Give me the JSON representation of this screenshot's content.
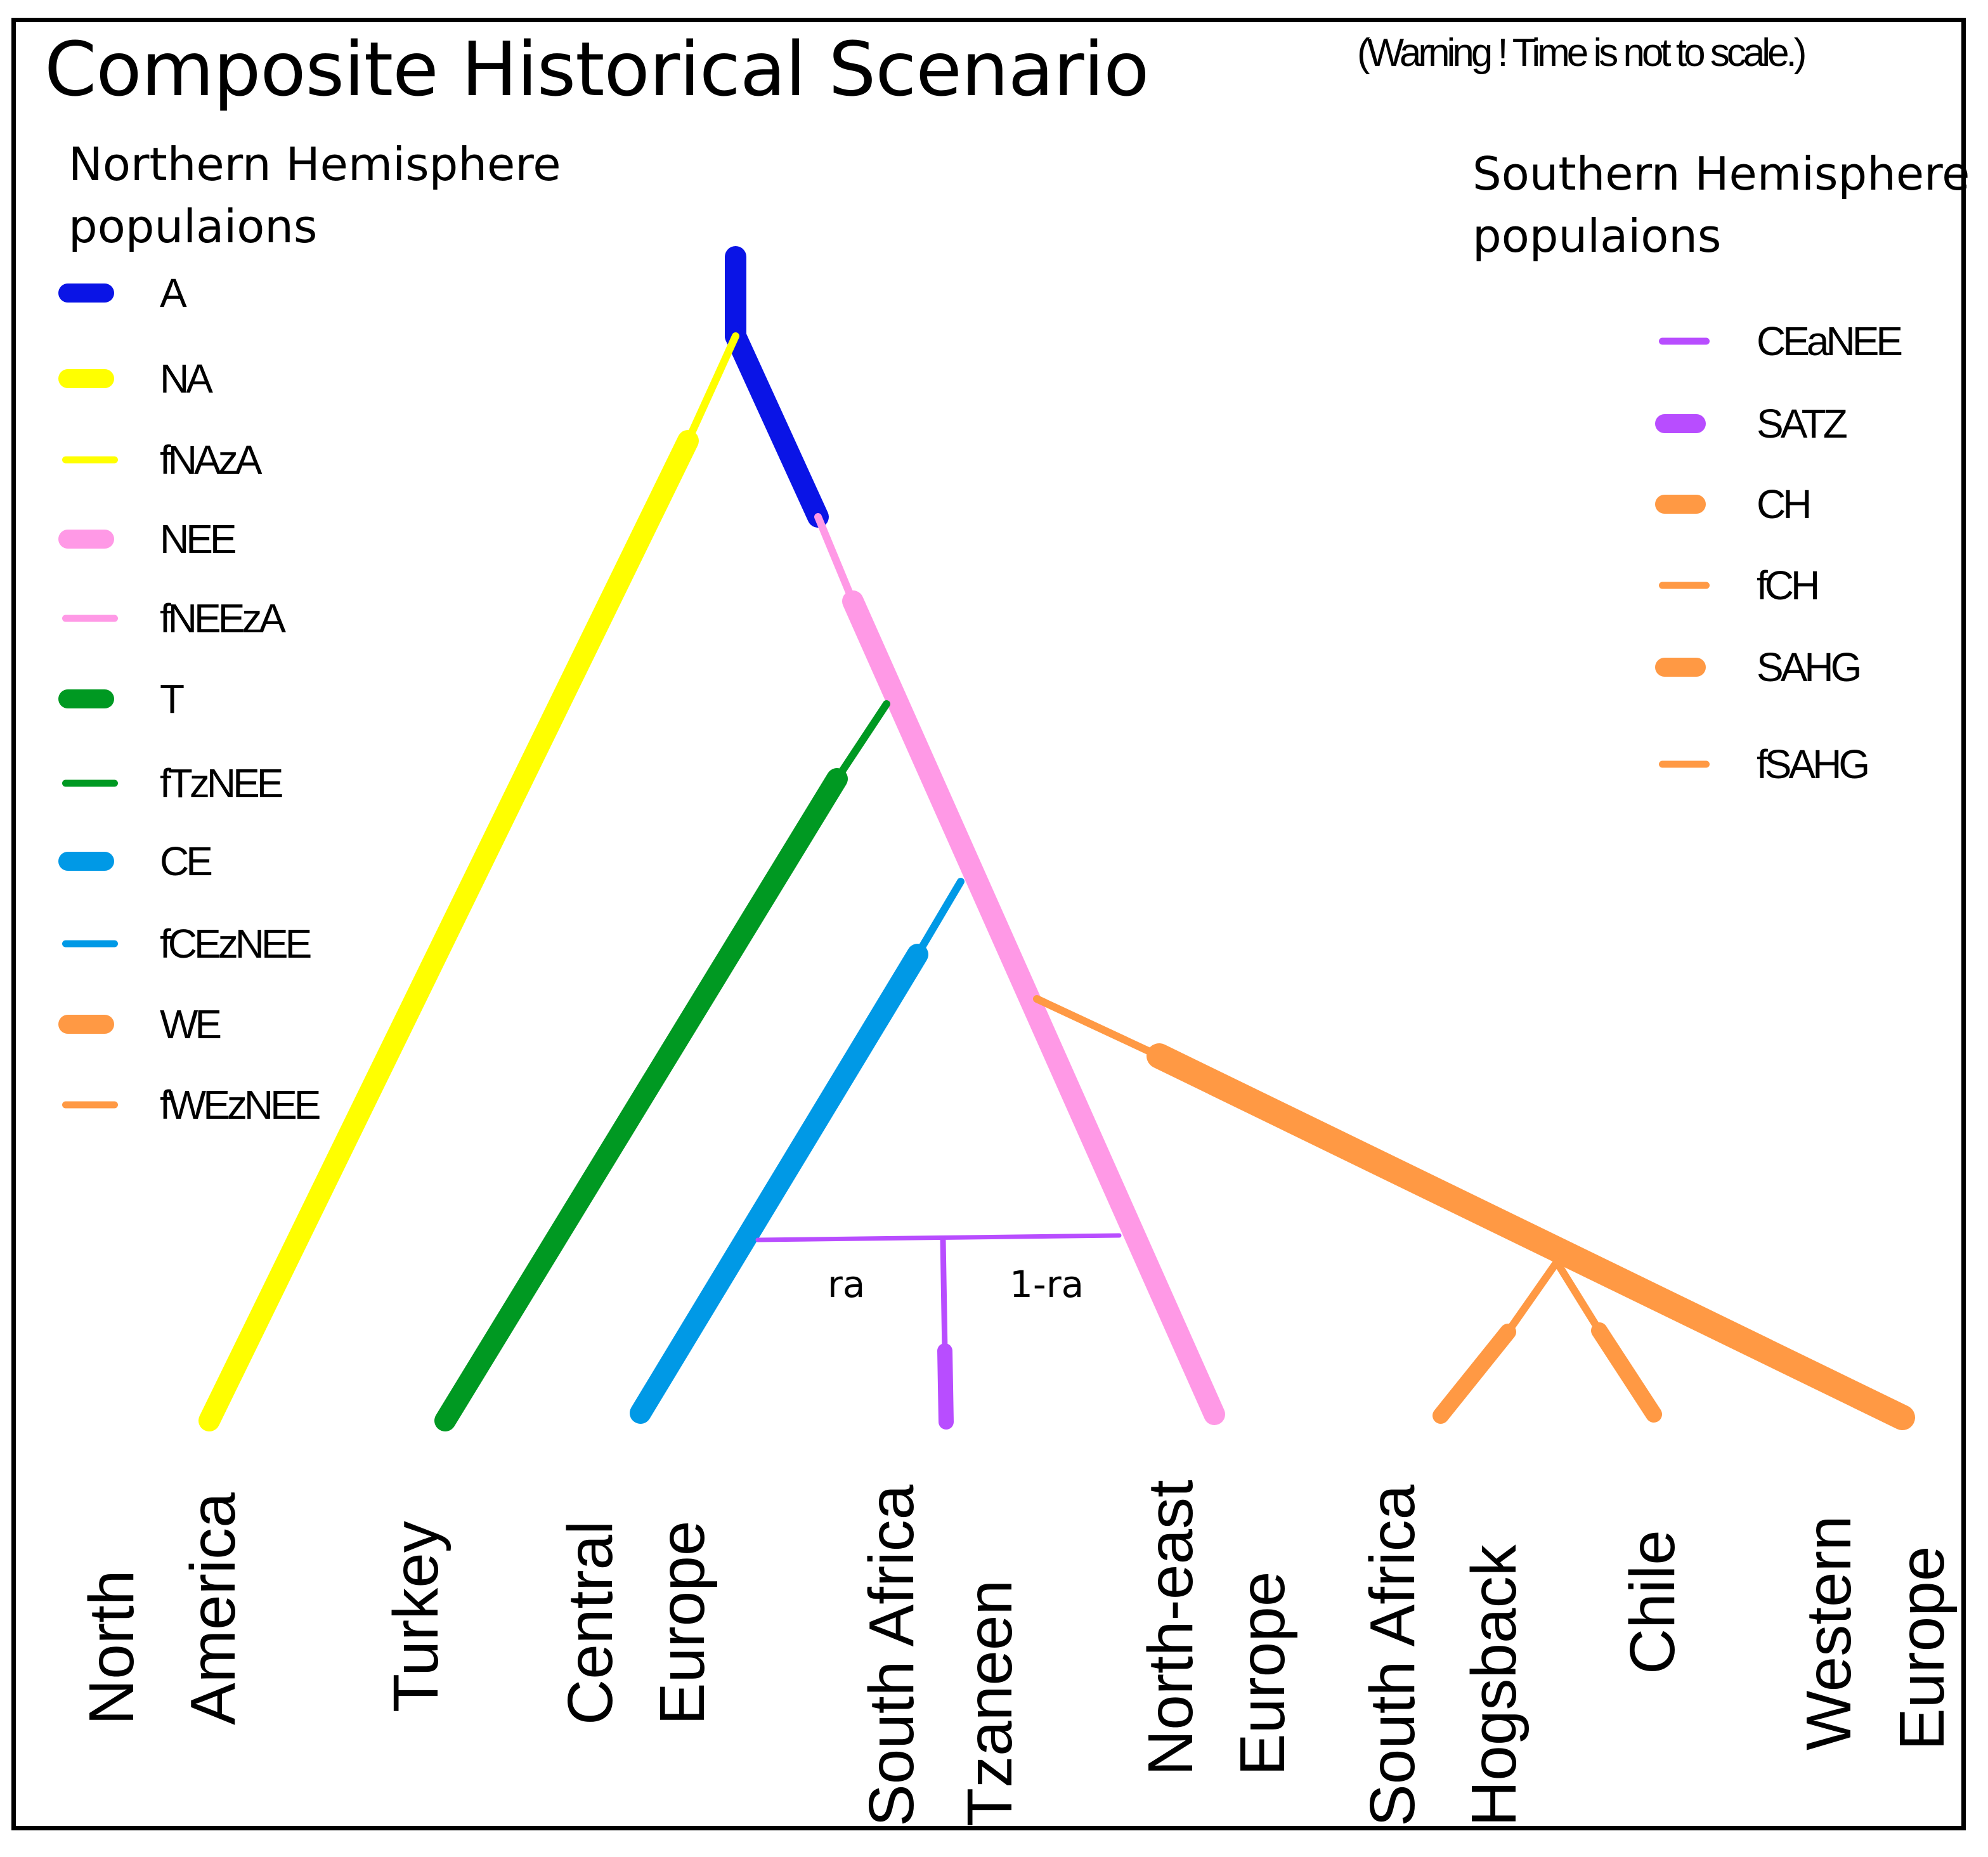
{
  "title": "Composite Historical Scenario",
  "warning": "(Warning ! Time is not to scale.)",
  "north_legend": {
    "heading_line1": "Northern Hemisphere",
    "heading_line2": "populaions",
    "items": [
      {
        "label": "A",
        "color": "#0a14e6",
        "weight": "thick"
      },
      {
        "label": "NA",
        "color": "#ffff00",
        "weight": "thick"
      },
      {
        "label": "fNAzA",
        "color": "#ffff00",
        "weight": "thin"
      },
      {
        "label": "NEE",
        "color": "#ff99e6",
        "weight": "thick"
      },
      {
        "label": "fNEEzA",
        "color": "#ff99e6",
        "weight": "thin"
      },
      {
        "label": "T",
        "color": "#009922",
        "weight": "thick"
      },
      {
        "label": "fTzNEE",
        "color": "#009922",
        "weight": "thin"
      },
      {
        "label": "CE",
        "color": "#0099e6",
        "weight": "thick"
      },
      {
        "label": "fCEzNEE",
        "color": "#0099e6",
        "weight": "thin"
      },
      {
        "label": "WE",
        "color": "#ff9944",
        "weight": "thick"
      },
      {
        "label": "fWEzNEE",
        "color": "#ff9944",
        "weight": "thin"
      }
    ]
  },
  "south_legend": {
    "heading_line1": "Southern Hemisphere",
    "heading_line2": "populaions",
    "items": [
      {
        "label": "CEaNEE",
        "color": "#b84dff",
        "weight": "thin"
      },
      {
        "label": "SATZ",
        "color": "#b84dff",
        "weight": "thick"
      },
      {
        "label": "CH",
        "color": "#ff9944",
        "weight": "thick"
      },
      {
        "label": "fCH",
        "color": "#ff9944",
        "weight": "thin"
      },
      {
        "label": "SAHG",
        "color": "#ff9944",
        "weight": "thick"
      },
      {
        "label": "fSAHG",
        "color": "#ff9944",
        "weight": "thin"
      }
    ]
  },
  "admixture": {
    "left_label": "ra",
    "right_label": "1-ra"
  },
  "populations": [
    {
      "line1": "North",
      "line2": "America"
    },
    {
      "line1": "Turkey",
      "line2": ""
    },
    {
      "line1": "Central",
      "line2": "Europe"
    },
    {
      "line1": "South Africa",
      "line2": "Tzaneen"
    },
    {
      "line1": "North-east",
      "line2": "Europe"
    },
    {
      "line1": "South Africa",
      "line2": "Hogsback"
    },
    {
      "line1": "Chile",
      "line2": ""
    },
    {
      "line1": "Western",
      "line2": "Europe"
    }
  ]
}
